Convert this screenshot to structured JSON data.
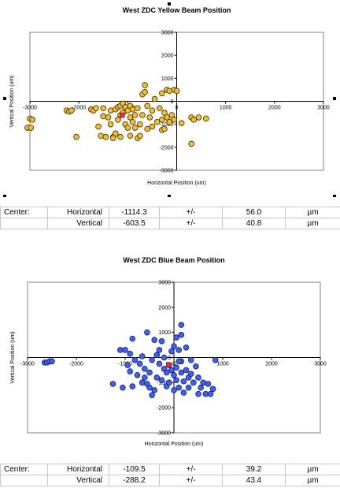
{
  "chart_data": [
    {
      "type": "scatter",
      "title": "West ZDC  Yellow   Beam Position",
      "xlabel": "Horizontal Position (um)",
      "ylabel": "Vertical Position (um)",
      "xlim": [
        -3000,
        3000
      ],
      "ylim": [
        -3000,
        3000
      ],
      "xticks": [
        "-3000",
        "-2000",
        "-1000",
        "0",
        "1000",
        "2000",
        "3000"
      ],
      "yticks": [
        "3000",
        "2000",
        "1000",
        "0",
        "-1000",
        "-2000",
        "-3000"
      ],
      "grid": false,
      "legend": "none",
      "marker_color": "#f2bf2a",
      "marker_edge": "#3a2a00",
      "center_color": "#e0303a",
      "center": [
        -1114.3,
        -603.5
      ],
      "points": [
        [
          -3000,
          -750
        ],
        [
          -2950,
          -800
        ],
        [
          -3050,
          -1150
        ],
        [
          -2980,
          -1150
        ],
        [
          -2250,
          -400
        ],
        [
          -2200,
          -450
        ],
        [
          -2150,
          -400
        ],
        [
          -2050,
          -1550
        ],
        [
          -1750,
          -350
        ],
        [
          -1700,
          -400
        ],
        [
          -1650,
          -300
        ],
        [
          -1600,
          -1100
        ],
        [
          -1550,
          -1500
        ],
        [
          -1500,
          -300
        ],
        [
          -1500,
          -650
        ],
        [
          -1450,
          -1550
        ],
        [
          -1400,
          -700
        ],
        [
          -1350,
          -400
        ],
        [
          -1350,
          -1000
        ],
        [
          -1300,
          -1550
        ],
        [
          -1250,
          -350
        ],
        [
          -1200,
          -250
        ],
        [
          -1200,
          -800
        ],
        [
          -1150,
          -600
        ],
        [
          -1150,
          -200
        ],
        [
          -1100,
          -100
        ],
        [
          -1100,
          -500
        ],
        [
          -1050,
          -250
        ],
        [
          -1050,
          -1000
        ],
        [
          -1000,
          -1150
        ],
        [
          -1000,
          -400
        ],
        [
          -950,
          -200
        ],
        [
          -950,
          -1500
        ],
        [
          -950,
          -700
        ],
        [
          -900,
          -350
        ],
        [
          -900,
          -900
        ],
        [
          -850,
          -1150
        ],
        [
          -850,
          -600
        ],
        [
          -800,
          -1600
        ],
        [
          -800,
          -300
        ],
        [
          -750,
          -1000
        ],
        [
          -750,
          -1500
        ],
        [
          -700,
          -600
        ],
        [
          -700,
          300
        ],
        [
          -650,
          700
        ],
        [
          -650,
          400
        ],
        [
          -600,
          -200
        ],
        [
          -600,
          -1200
        ],
        [
          -550,
          -700
        ],
        [
          -500,
          -400
        ],
        [
          -500,
          -1100
        ],
        [
          -450,
          100
        ],
        [
          -400,
          -900
        ],
        [
          -350,
          -300
        ],
        [
          -300,
          -800
        ],
        [
          -300,
          350
        ],
        [
          -300,
          -1250
        ],
        [
          -250,
          -500
        ],
        [
          -250,
          -1200
        ],
        [
          -200,
          -700
        ],
        [
          -150,
          -900
        ],
        [
          -100,
          -600
        ],
        [
          -50,
          -800
        ],
        [
          -200,
          500
        ],
        [
          -150,
          450
        ],
        [
          -50,
          500
        ],
        [
          0,
          450
        ],
        [
          -1300,
          -1600
        ],
        [
          -1150,
          -1550
        ],
        [
          -1250,
          -1400
        ],
        [
          100,
          -950
        ],
        [
          300,
          -700
        ],
        [
          350,
          -800
        ],
        [
          450,
          -700
        ],
        [
          600,
          -750
        ],
        [
          300,
          -1850
        ]
      ]
    },
    {
      "type": "scatter",
      "title": "West ZDC  Blue   Beam Position",
      "xlabel": "Horizontal Position (um)",
      "ylabel": "Vertical Position (um)",
      "xlim": [
        -3000,
        3000
      ],
      "ylim": [
        -3000,
        3000
      ],
      "xticks": [
        "-3000",
        "-2000",
        "-1000",
        "0",
        "1000",
        "2000",
        "3000"
      ],
      "yticks": [
        "3000",
        "2000",
        "1000",
        "0",
        "-1000",
        "-2000",
        "-3000"
      ],
      "grid": false,
      "legend": "none",
      "marker_color": "#4060ee",
      "marker_edge": "#101a80",
      "center_color": "#e0303a",
      "center": [
        -109.5,
        -288.2
      ],
      "points": [
        [
          -2650,
          -200
        ],
        [
          -2600,
          -200
        ],
        [
          -2550,
          -150
        ],
        [
          -2500,
          -150
        ],
        [
          -1250,
          -1050
        ],
        [
          -1100,
          300
        ],
        [
          -1050,
          -1200
        ],
        [
          -1000,
          300
        ],
        [
          -950,
          -300
        ],
        [
          -900,
          150
        ],
        [
          -900,
          -550
        ],
        [
          -850,
          -1150
        ],
        [
          -850,
          750
        ],
        [
          -800,
          -100
        ],
        [
          -750,
          -700
        ],
        [
          -700,
          -250
        ],
        [
          -650,
          -1000
        ],
        [
          -650,
          50
        ],
        [
          -600,
          -450
        ],
        [
          -600,
          -800
        ],
        [
          -550,
          -1050
        ],
        [
          -500,
          -600
        ],
        [
          -500,
          -1200
        ],
        [
          -450,
          -100
        ],
        [
          -450,
          -1500
        ],
        [
          -400,
          -1300
        ],
        [
          -350,
          -800
        ],
        [
          -350,
          100
        ],
        [
          -300,
          -250
        ],
        [
          -250,
          -900
        ],
        [
          -200,
          -450
        ],
        [
          -200,
          0
        ],
        [
          -150,
          -1150
        ],
        [
          -150,
          -600
        ],
        [
          -100,
          -1000
        ],
        [
          -100,
          -300
        ],
        [
          -50,
          -500
        ],
        [
          -50,
          250
        ],
        [
          0,
          -1300
        ],
        [
          0,
          -700
        ],
        [
          50,
          -900
        ],
        [
          50,
          -400
        ],
        [
          100,
          300
        ],
        [
          100,
          -1200
        ],
        [
          150,
          -600
        ],
        [
          150,
          -150
        ],
        [
          200,
          -1400
        ],
        [
          200,
          -950
        ],
        [
          250,
          -500
        ],
        [
          250,
          400
        ],
        [
          300,
          -1200
        ],
        [
          300,
          -800
        ],
        [
          350,
          -100
        ],
        [
          350,
          -650
        ],
        [
          400,
          -1000
        ],
        [
          450,
          -350
        ],
        [
          500,
          -1450
        ],
        [
          500,
          -800
        ],
        [
          550,
          -1200
        ],
        [
          600,
          -1000
        ],
        [
          650,
          -1450
        ],
        [
          700,
          -1050
        ],
        [
          750,
          -1450
        ],
        [
          800,
          -1250
        ],
        [
          850,
          -100
        ],
        [
          50,
          800
        ],
        [
          150,
          900
        ],
        [
          150,
          1300
        ],
        [
          -550,
          1000
        ],
        [
          -400,
          700
        ],
        [
          -300,
          300
        ],
        [
          -250,
          650
        ],
        [
          0,
          450
        ],
        [
          100,
          -150
        ]
      ]
    }
  ],
  "yellow_stats": {
    "rows": [
      [
        "Center:",
        "Horizontal",
        "-1114.3",
        "+/-",
        "56.0",
        "µm"
      ],
      [
        "",
        "Vertical",
        "-603.5",
        "+/-",
        "40.8",
        "µm"
      ]
    ]
  },
  "blue_stats": {
    "rows": [
      [
        "Center:",
        "Horizontal",
        "-109.5",
        "+/-",
        "39.2",
        "µm"
      ],
      [
        "",
        "Vertical",
        "-288.2",
        "+/-",
        "43.4",
        "µm"
      ]
    ]
  }
}
